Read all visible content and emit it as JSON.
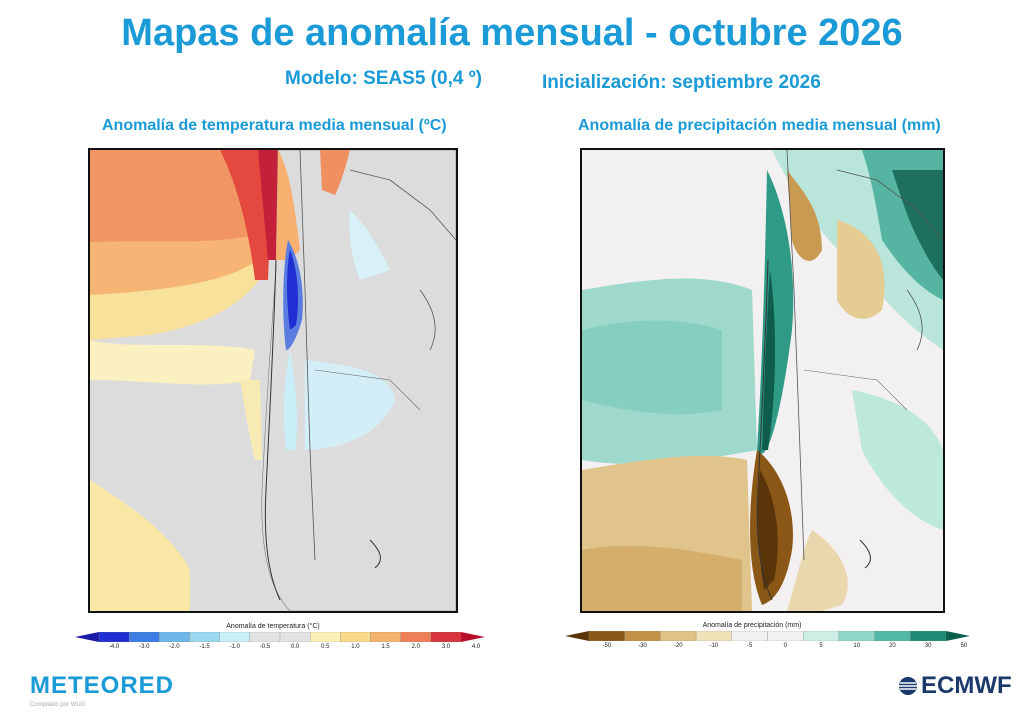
{
  "title": "Mapas de anomalía mensual - octubre 2026",
  "model": "Modelo: SEAS5 (0,4 º)",
  "init": "Inicialización: septiembre 2026",
  "temp_map": {
    "title": "Anomalía de temperatura media mensual (ºC)",
    "colorbar_title": "Anomalía de temperatura (°C)",
    "ticks": [
      "-4.0",
      "-3.0",
      "-2.0",
      "-1.5",
      "-1.0",
      "-0.5",
      "0.0",
      "0.5",
      "1.0",
      "1.5",
      "2.0",
      "3.0",
      "4.0"
    ],
    "colors": [
      "#1f2fd1",
      "#3b7de3",
      "#6cb6ea",
      "#9bd8f0",
      "#c8eef7",
      "#e3e3e3",
      "#e3e3e3",
      "#fbf1b7",
      "#f9d98a",
      "#f4b26f",
      "#ef7f57",
      "#d9333b"
    ],
    "low_color": "#1a1aa8",
    "high_color": "#b80f2b"
  },
  "precip_map": {
    "title": "Anomalía de precipitación media mensual (mm)",
    "colorbar_title": "Anomalía de precipitación (mm)",
    "ticks": [
      "-50",
      "-30",
      "-20",
      "-10",
      "-5",
      "0",
      "5",
      "10",
      "20",
      "30",
      "50"
    ],
    "colors": [
      "#8a5717",
      "#c39146",
      "#dfc285",
      "#f1e2b8",
      "#f3f0f1",
      "#f3f0f1",
      "#cdeee5",
      "#8fd6c7",
      "#52b8a6",
      "#1f8c78"
    ],
    "low_color": "#5a350a",
    "high_color": "#0d5f4e"
  },
  "logos": {
    "left": "METEORED",
    "right": "ECMWF"
  },
  "credit": "Compilado por WUG"
}
